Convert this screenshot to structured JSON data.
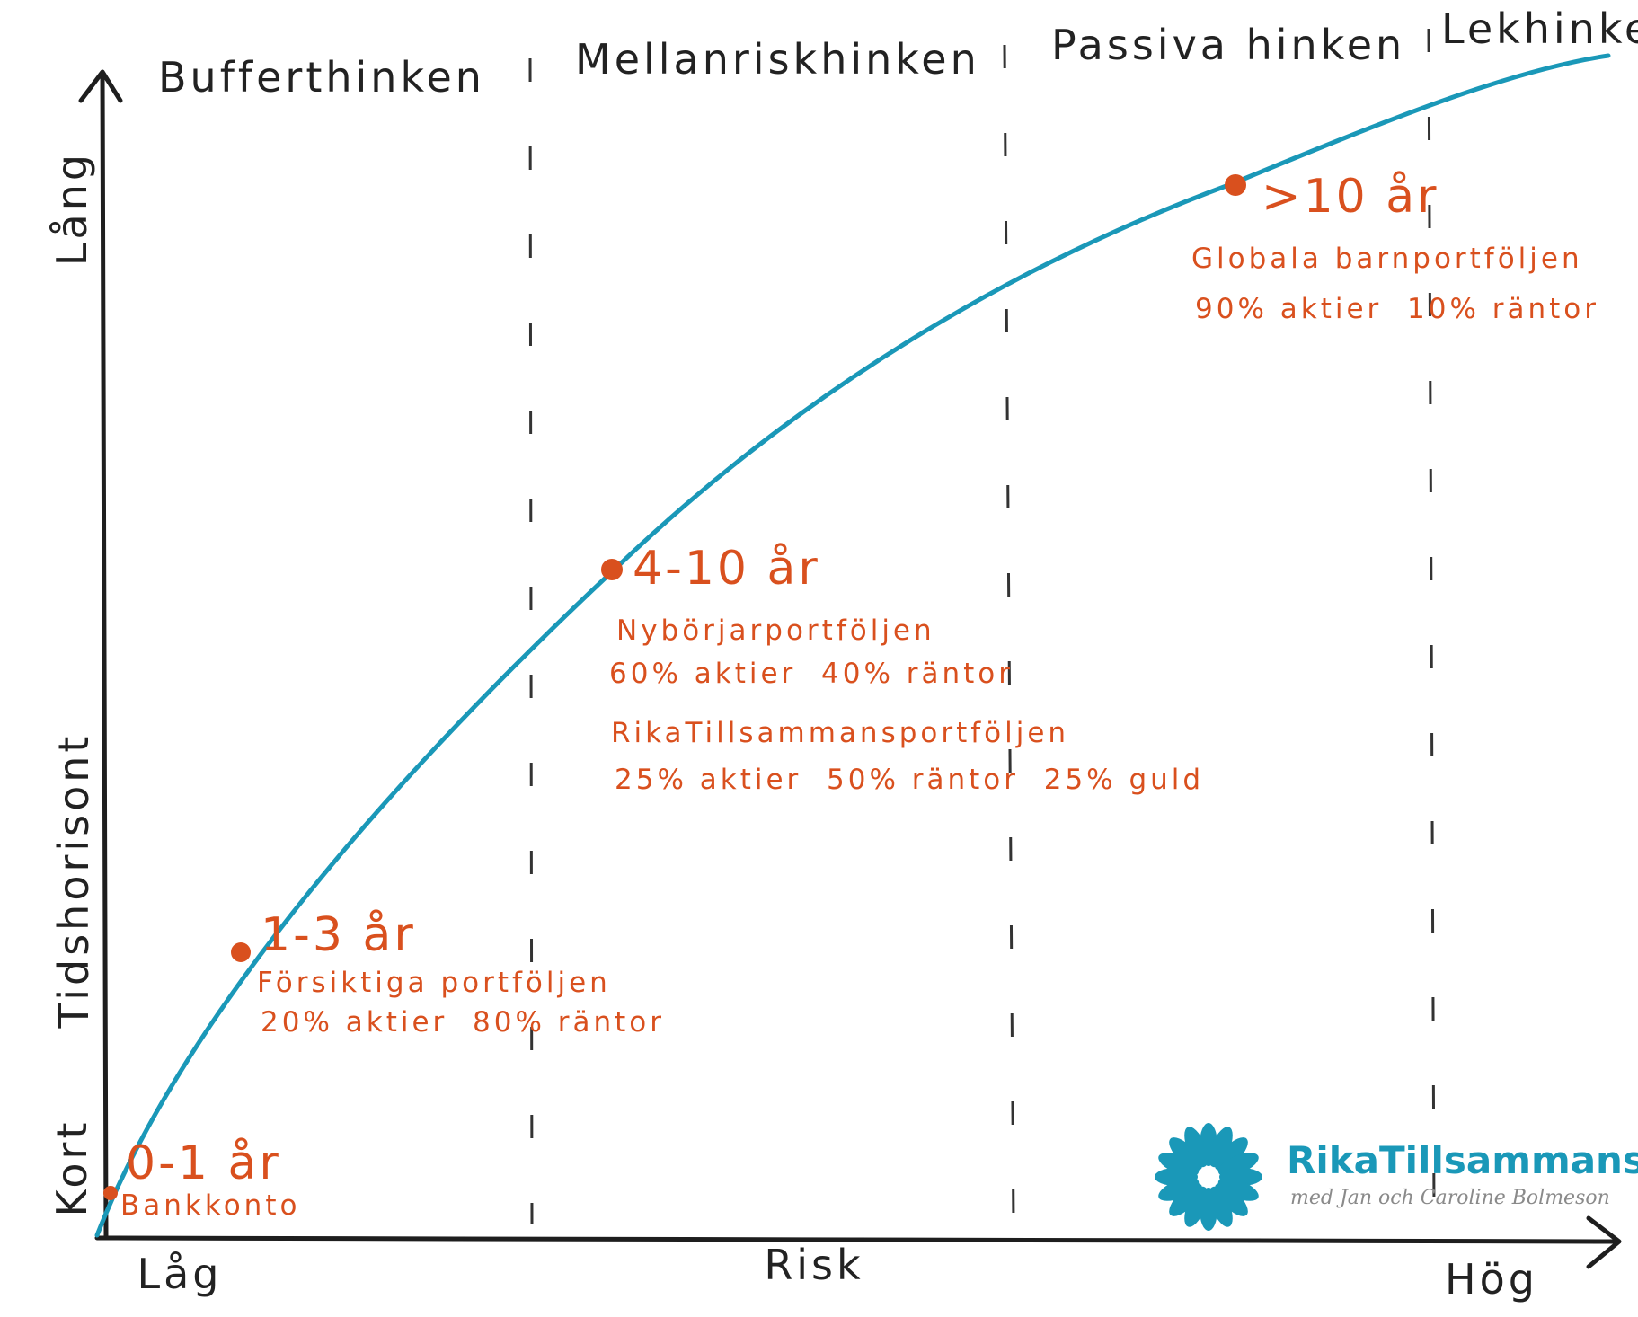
{
  "diagram": {
    "buckets": [
      "Bufferthinken",
      "Mellanriskhinken",
      "Passiva hinken",
      "Lekhinken"
    ],
    "y_axis": {
      "label": "Tidshorisont",
      "low": "Kort",
      "high": "Lång"
    },
    "x_axis": {
      "label": "Risk",
      "low": "Låg",
      "high": "Hög"
    },
    "milestones": [
      {
        "title": "0-1 år",
        "lines": [
          "Bankkonto"
        ]
      },
      {
        "title": "1-3 år",
        "lines": [
          "Försiktiga portföljen",
          "20% aktier  80% räntor"
        ]
      },
      {
        "title": "4-10 år",
        "lines": [
          "Nybörjarportföljen",
          "60% aktier  40% räntor",
          "",
          "RikaTillsammansportföljen",
          "25% aktier  50% räntor  25% guld"
        ]
      },
      {
        "title": ">10 år",
        "lines": [
          "Globala barnportföljen",
          "90% aktier  10% räntor"
        ]
      }
    ],
    "colors": {
      "curve": "#1a98b8",
      "milestone": "#d9501e",
      "ink": "#222222"
    }
  },
  "brand": {
    "name": "RikaTillsammans",
    "tagline": "med Jan och Caroline Bolmeson",
    "icon": "flower-logo-icon",
    "color": "#1a98b8"
  }
}
